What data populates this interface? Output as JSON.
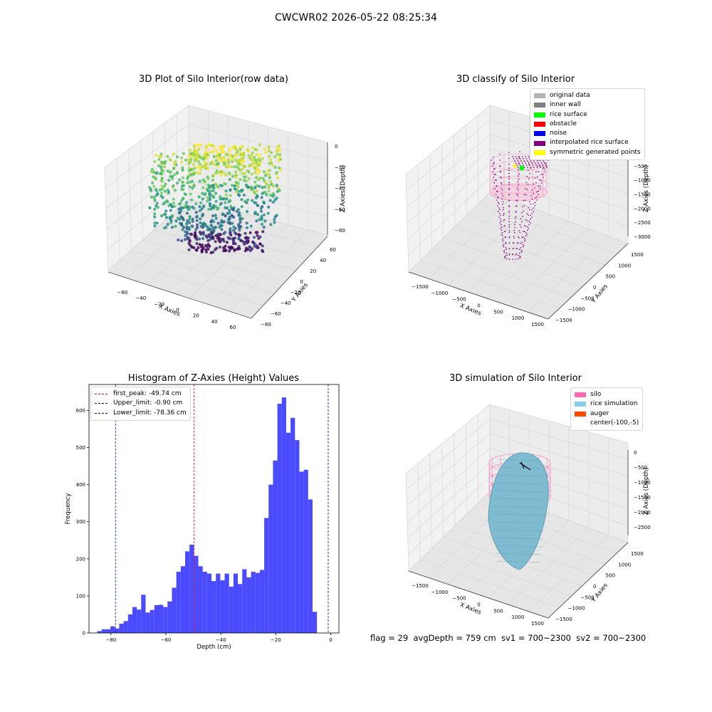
{
  "suptitle": "CWCWR02 2026-05-22 08:25:34",
  "colors": {
    "hist_bar": "#4a4aff",
    "first_peak": "#ff0000",
    "upper": "#0000aa",
    "lower": "#0000aa"
  },
  "raw_plot": {
    "title": "3D Plot of Silo Interior(row data)",
    "xlabel": "X Axies",
    "ylabel": "Y Axies",
    "zlabel": "Z Axies (Depth)",
    "xticks": [
      "−60",
      "−40",
      "−20",
      "0",
      "20",
      "40",
      "60"
    ],
    "yticks": [
      "−80",
      "−60",
      "−40",
      "−20",
      "0",
      "20",
      "40",
      "60"
    ],
    "zticks": [
      "0",
      "−20",
      "−40",
      "−60",
      "−80"
    ]
  },
  "classify_plot": {
    "title": "3D classify of Silo Interior",
    "xlabel": "X Axies",
    "ylabel": "Y Axies",
    "zlabel": "Z Axies (Depth)",
    "xticks": [
      "−1500",
      "−1000",
      "−500",
      "0",
      "500",
      "1000",
      "1500"
    ],
    "yticks": [
      "−1500",
      "−1000",
      "−500",
      "0",
      "500",
      "1000",
      "1500"
    ],
    "zticks": [
      "0",
      "−500",
      "−1000",
      "−1500",
      "−2000",
      "−2500",
      "−3000"
    ],
    "legend": [
      {
        "label": "original data",
        "color": "#b3b3b3"
      },
      {
        "label": "inner wall",
        "color": "#808080"
      },
      {
        "label": "rice surface",
        "color": "#00ff00"
      },
      {
        "label": "obstacle",
        "color": "#ff0000"
      },
      {
        "label": "noise",
        "color": "#0000ff"
      },
      {
        "label": "interpolated rice surface",
        "color": "#800080"
      },
      {
        "label": "symmetric generated points",
        "color": "#ffff00"
      }
    ]
  },
  "sim_plot": {
    "title": "3D simulation of Silo Interior",
    "xlabel": "X Axies",
    "ylabel": "Y Axies",
    "zlabel": "Z Axies (Depth)",
    "xticks": [
      "−1500",
      "−1000",
      "−500",
      "0",
      "500",
      "1000",
      "1500"
    ],
    "yticks": [
      "−1500",
      "−1000",
      "−500",
      "0",
      "500",
      "1000",
      "1500"
    ],
    "zticks": [
      "0",
      "−500",
      "−1000",
      "−1500",
      "−2000",
      "−2500"
    ],
    "legend": [
      {
        "label": "silo",
        "color": "#ff69b4"
      },
      {
        "label": "rice simulation",
        "color": "#87ceeb"
      },
      {
        "label": "auger",
        "color": "#ff4500"
      },
      {
        "label": "center(-100,-5)",
        "color": ""
      }
    ]
  },
  "footer": {
    "flag": "flag = 29",
    "avg": "avgDepth = 759 cm",
    "sv1": "sv1 = 700~2300",
    "sv2": "sv2 = 700~2300"
  },
  "chart_data": {
    "type": "bar",
    "title": "Histogram of Z-Axies (Height) Values",
    "xlabel": "Depth (cm)",
    "ylabel": "Frequency",
    "xlim": [
      -88,
      3
    ],
    "ylim": [
      0,
      670
    ],
    "bin_start": -85.0,
    "bin_width": 1.6,
    "values": [
      5,
      10,
      10,
      18,
      12,
      25,
      32,
      50,
      70,
      63,
      103,
      55,
      62,
      75,
      76,
      70,
      85,
      122,
      165,
      180,
      220,
      238,
      208,
      180,
      165,
      160,
      140,
      160,
      142,
      160,
      125,
      160,
      132,
      172,
      150,
      165,
      162,
      170,
      310,
      400,
      465,
      618,
      635,
      540,
      580,
      520,
      435,
      440,
      360,
      57
    ],
    "xticks": [
      -80,
      -60,
      -40,
      -20,
      0
    ],
    "xtick_labels": [
      "−80",
      "−60",
      "−40",
      "−20",
      "0"
    ],
    "yticks": [
      0,
      100,
      200,
      300,
      400,
      500,
      600
    ],
    "lines": [
      {
        "label": "first_peak: -49.74 cm",
        "x": -49.74,
        "color": "#ff0000"
      },
      {
        "label": "Upper_limit: -0.90 cm",
        "x": -0.9,
        "color": "#0000aa"
      },
      {
        "label": "Lower_limit: -78.36 cm",
        "x": -78.36,
        "color": "#0000aa"
      }
    ],
    "grid": false,
    "legend_position": "top-left"
  }
}
